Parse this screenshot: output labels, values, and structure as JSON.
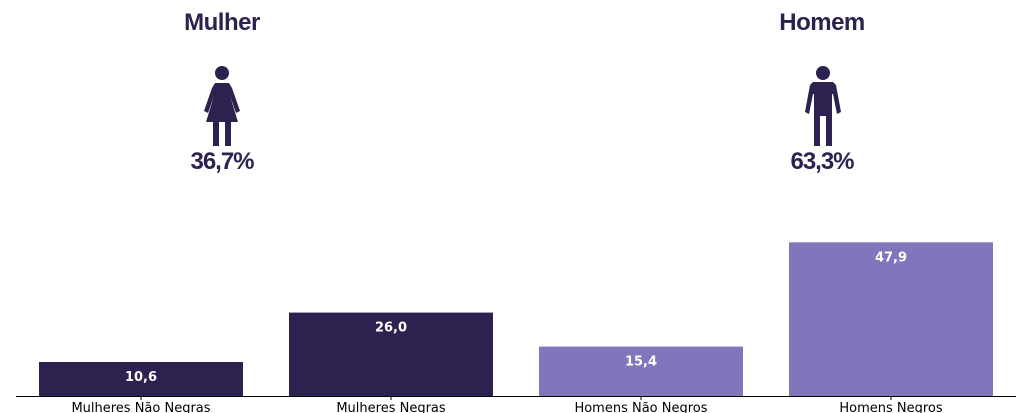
{
  "panels": {
    "left": {
      "title": "Mulher",
      "percent": "36,7%",
      "icon": "female-person-icon"
    },
    "right": {
      "title": "Homem",
      "percent": "63,3%",
      "icon": "male-person-icon"
    }
  },
  "colors": {
    "dark": "#2d2150",
    "light": "#8176bc",
    "label": "#ffffff",
    "axis": "#000000"
  },
  "chart_data": {
    "type": "bar",
    "categories": [
      "Mulheres Não Negras",
      "Mulheres Negras",
      "Homens Não Negros",
      "Homens Negros"
    ],
    "values": [
      10.6,
      26.0,
      15.4,
      47.9
    ],
    "value_labels": [
      "10,6",
      "26,0",
      "15,4",
      "47,9"
    ],
    "bar_colors": [
      "#2d2150",
      "#2d2150",
      "#8176bc",
      "#8176bc"
    ],
    "ylim": [
      0,
      48
    ],
    "grid": false
  }
}
